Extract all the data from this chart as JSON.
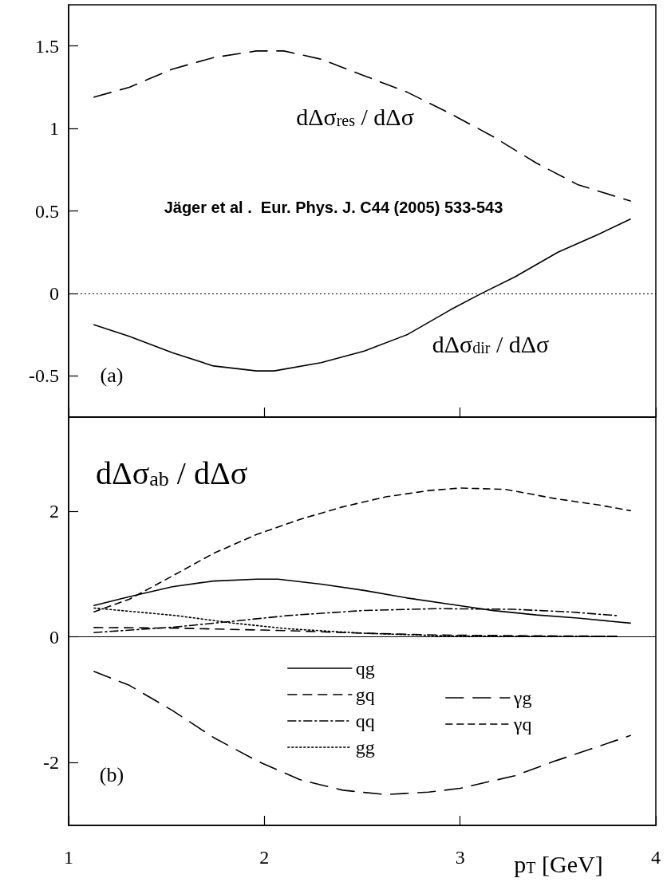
{
  "chart_data": [
    {
      "type": "line",
      "xlim": [
        1,
        4
      ],
      "xticks": [
        1,
        2,
        3,
        4
      ],
      "ylim": [
        -0.75,
        1.75
      ],
      "yticks": [
        -0.5,
        0,
        0.5,
        1,
        1.5
      ],
      "tick_labels": "y",
      "ref_lines": [
        {
          "axis": "y",
          "value": 0,
          "line_style": "dotted",
          "color": "#000000"
        }
      ],
      "annotations": [
        "Jäger et al .  Eur. Phys. J. C44 (2005) 533-543",
        "(a)",
        "dΔσ$_{res}$ / dΔσ",
        "dΔσ$_{dir}$ / dΔσ"
      ],
      "series": [
        {
          "color": "#000000",
          "line_style": "longdash",
          "x": [
            1.13,
            1.31,
            1.53,
            1.74,
            1.96,
            2.1,
            2.29,
            2.51,
            2.73,
            2.95,
            3.17,
            3.39,
            3.6,
            3.87
          ],
          "values": [
            1.19,
            1.25,
            1.36,
            1.43,
            1.47,
            1.47,
            1.42,
            1.32,
            1.22,
            1.09,
            0.95,
            0.79,
            0.66,
            0.56
          ]
        },
        {
          "color": "#000000",
          "line_style": "solid",
          "x": [
            1.13,
            1.31,
            1.53,
            1.74,
            1.96,
            2.05,
            2.29,
            2.51,
            2.73,
            2.95,
            3.11,
            3.28,
            3.5,
            3.71,
            3.87
          ],
          "values": [
            -0.19,
            -0.26,
            -0.36,
            -0.44,
            -0.47,
            -0.47,
            -0.42,
            -0.35,
            -0.25,
            -0.1,
            0,
            0.1,
            0.25,
            0.36,
            0.45
          ]
        }
      ]
    },
    {
      "type": "line",
      "title": "dΔσ$_{ab}$ / dΔσ",
      "xlabel": "p$_{T}$ [GeV]",
      "xlim": [
        1,
        4
      ],
      "xticks": [
        1,
        2,
        3,
        4
      ],
      "ylim": [
        -3,
        3.5
      ],
      "yticks": [
        -2,
        0,
        2
      ],
      "legend": "bottom",
      "annotations": [
        "(b)"
      ],
      "ref_lines": [
        {
          "axis": "y",
          "value": 0,
          "line_style": "solid",
          "color": "#000000"
        }
      ],
      "series": [
        {
          "name": "qg",
          "color": "#000000",
          "line_style": "solid",
          "x": [
            1.13,
            1.31,
            1.53,
            1.74,
            1.96,
            2.07,
            2.29,
            2.51,
            2.73,
            2.95,
            3.17,
            3.39,
            3.6,
            3.87
          ],
          "values": [
            0.5,
            0.64,
            0.8,
            0.89,
            0.92,
            0.92,
            0.84,
            0.74,
            0.62,
            0.52,
            0.42,
            0.35,
            0.3,
            0.22
          ]
        },
        {
          "name": "gq",
          "color": "#000000",
          "line_style": "dashed",
          "x": [
            1.13,
            1.55,
            2.12,
            2.5,
            2.88,
            3.3,
            3.8
          ],
          "values": [
            0.15,
            0.14,
            0.1,
            0.06,
            0.03,
            0.02,
            0.01
          ]
        },
        {
          "name": "qq",
          "color": "#000000",
          "line_style": "dashdot",
          "x": [
            1.13,
            1.55,
            1.84,
            2.12,
            2.5,
            2.88,
            3.27,
            3.55,
            3.8
          ],
          "values": [
            0.07,
            0.16,
            0.25,
            0.34,
            0.42,
            0.45,
            0.44,
            0.4,
            0.34
          ]
        },
        {
          "name": "gg",
          "color": "#000000",
          "line_style": "dotted",
          "x": [
            1.13,
            1.55,
            1.84,
            2.12,
            2.5,
            2.88,
            3.27,
            3.8
          ],
          "values": [
            0.46,
            0.34,
            0.22,
            0.13,
            0.06,
            0.02,
            0.01,
            0.01
          ]
        },
        {
          "name": "γg",
          "color": "#000000",
          "line_style": "longdash",
          "x": [
            1.13,
            1.31,
            1.53,
            1.74,
            1.96,
            2.18,
            2.4,
            2.62,
            2.84,
            3.0,
            3.28,
            3.49,
            3.71,
            3.87
          ],
          "values": [
            -0.55,
            -0.77,
            -1.17,
            -1.6,
            -1.97,
            -2.27,
            -2.44,
            -2.51,
            -2.47,
            -2.41,
            -2.21,
            -1.97,
            -1.74,
            -1.57
          ]
        },
        {
          "name": "γq",
          "color": "#000000",
          "line_style": "shortdash",
          "x": [
            1.13,
            1.31,
            1.53,
            1.74,
            1.96,
            2.18,
            2.4,
            2.62,
            2.84,
            3.0,
            3.23,
            3.49,
            3.71,
            3.87
          ],
          "values": [
            0.4,
            0.6,
            0.97,
            1.33,
            1.63,
            1.87,
            2.07,
            2.23,
            2.33,
            2.37,
            2.35,
            2.2,
            2.1,
            2.01
          ]
        }
      ]
    }
  ]
}
